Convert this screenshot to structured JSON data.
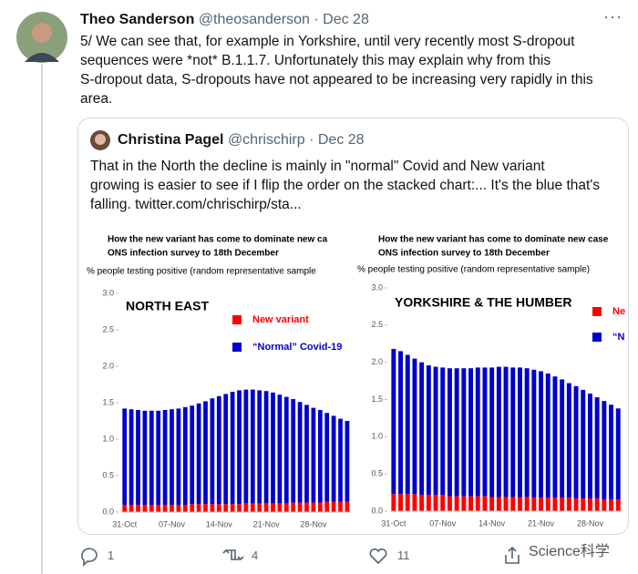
{
  "tweet": {
    "name": "Theo Sanderson",
    "handle": "@theosanderson",
    "date": "· Dec 28",
    "text": [
      "5/ We can see that, for example in Yorkshire, until very recently most S-dropout",
      "sequences were *not* B.1.1.7. Unfortunately this may explain why from this",
      "S-dropout data, S-dropouts have not appeared to be increasing very rapidly in this",
      "area."
    ]
  },
  "quote": {
    "name": "Christina Pagel",
    "handle": "@chrischirp",
    "date": "· Dec 28",
    "text": [
      "That in the North the decline is mainly in \"normal\" Covid and New variant",
      "growing is easier to see if I flip the order on the stacked chart:... It's the blue that's",
      "falling. twitter.com/chrischirp/sta..."
    ]
  },
  "chart_data": [
    {
      "type": "bar",
      "stacked": true,
      "title": "How the new variant has come to dominate new ca",
      "subtitle": "ONS infection survey to 18th December",
      "ylabel": "% people testing positive (random representative sample",
      "annotation": "NORTH EAST",
      "categories": [
        "31-Oct",
        null,
        null,
        null,
        null,
        null,
        null,
        "07-Nov",
        null,
        null,
        null,
        null,
        null,
        null,
        "14-Nov",
        null,
        null,
        null,
        null,
        null,
        null,
        "21-Nov",
        null,
        null,
        null,
        null,
        null,
        null,
        "28-Nov",
        null,
        null,
        null,
        null,
        null
      ],
      "series": [
        {
          "name": "New variant",
          "color": "#ff0000",
          "values": [
            0.1,
            0.1,
            0.1,
            0.1,
            0.1,
            0.1,
            0.1,
            0.1,
            0.1,
            0.1,
            0.11,
            0.11,
            0.11,
            0.11,
            0.11,
            0.11,
            0.11,
            0.11,
            0.12,
            0.12,
            0.12,
            0.12,
            0.12,
            0.12,
            0.12,
            0.13,
            0.13,
            0.13,
            0.13,
            0.13,
            0.14,
            0.14,
            0.14,
            0.14
          ]
        },
        {
          "name": "“Normal” Covid-19",
          "color": "#0000cc",
          "values": [
            1.32,
            1.31,
            1.3,
            1.29,
            1.29,
            1.29,
            1.3,
            1.31,
            1.32,
            1.34,
            1.35,
            1.38,
            1.41,
            1.45,
            1.48,
            1.51,
            1.54,
            1.56,
            1.56,
            1.56,
            1.55,
            1.54,
            1.52,
            1.49,
            1.46,
            1.42,
            1.38,
            1.34,
            1.3,
            1.27,
            1.22,
            1.18,
            1.14,
            1.11
          ]
        }
      ],
      "ylim": [
        0,
        3
      ],
      "yticks": [
        {
          "value": 0,
          "label": "0.0"
        },
        0.5,
        {
          "value": 1,
          "label": "1.0"
        },
        1.5,
        {
          "value": 2,
          "label": "2.0"
        },
        2.5,
        {
          "value": 3,
          "label": "3.0"
        }
      ]
    },
    {
      "type": "bar",
      "stacked": true,
      "title": "How the new variant has come to dominate new case",
      "subtitle": "ONS infection survey to 18th December",
      "ylabel": "% people testing positive (random representative sample)",
      "annotation": "YORKSHIRE & THE HUMBER",
      "categories": [
        "31-Oct",
        null,
        null,
        null,
        null,
        null,
        null,
        "07-Nov",
        null,
        null,
        null,
        null,
        null,
        null,
        "14-Nov",
        null,
        null,
        null,
        null,
        null,
        null,
        "21-Nov",
        null,
        null,
        null,
        null,
        null,
        null,
        "28-Nov",
        null,
        null,
        null,
        null
      ],
      "series": [
        {
          "name": "Ne",
          "color": "#ff0000",
          "values": [
            0.23,
            0.23,
            0.23,
            0.23,
            0.22,
            0.22,
            0.22,
            0.22,
            0.2,
            0.2,
            0.2,
            0.2,
            0.2,
            0.2,
            0.19,
            0.19,
            0.19,
            0.19,
            0.19,
            0.19,
            0.18,
            0.18,
            0.18,
            0.18,
            0.18,
            0.18,
            0.17,
            0.17,
            0.17,
            0.17,
            0.16,
            0.16,
            0.16
          ]
        },
        {
          "name": "“N",
          "color": "#0000cc",
          "values": [
            1.95,
            1.92,
            1.87,
            1.82,
            1.78,
            1.74,
            1.72,
            1.71,
            1.72,
            1.72,
            1.72,
            1.72,
            1.73,
            1.73,
            1.74,
            1.75,
            1.75,
            1.74,
            1.74,
            1.73,
            1.72,
            1.7,
            1.67,
            1.63,
            1.59,
            1.54,
            1.51,
            1.46,
            1.41,
            1.36,
            1.32,
            1.27,
            1.22
          ]
        }
      ],
      "ylim": [
        0,
        3
      ],
      "yticks": [
        {
          "value": 0,
          "label": "0.0"
        },
        0.5,
        {
          "value": 1,
          "label": "1.0"
        },
        1.5,
        {
          "value": 2,
          "label": "2.0"
        },
        2.5,
        {
          "value": 3,
          "label": "3.0"
        }
      ]
    }
  ],
  "actions": {
    "replies": 1,
    "retweets": 4,
    "likes": 11
  },
  "watermark": "Science科学"
}
